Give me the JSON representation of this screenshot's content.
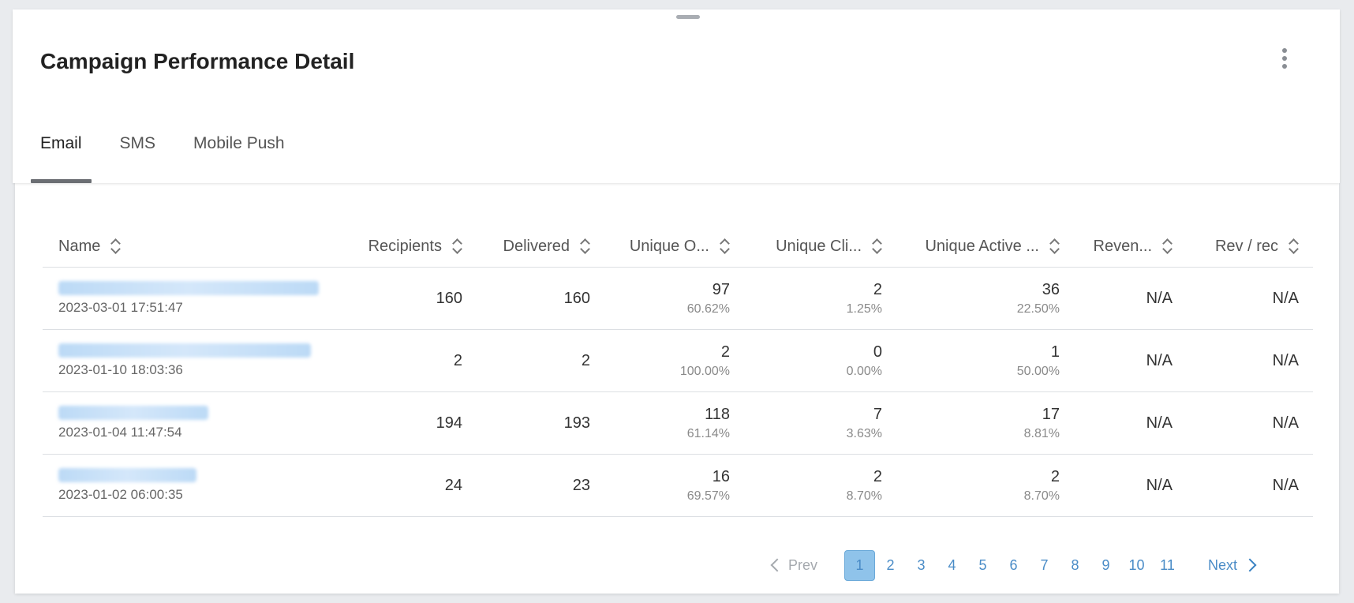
{
  "header": {
    "title": "Campaign Performance Detail",
    "more_icon": "more-vertical-icon"
  },
  "tabs": [
    {
      "label": "Email",
      "active": true
    },
    {
      "label": "SMS",
      "active": false
    },
    {
      "label": "Mobile Push",
      "active": false
    }
  ],
  "table": {
    "columns": [
      "Name",
      "Recipients",
      "Delivered",
      "Unique O...",
      "Unique Cli...",
      "Unique Active ...",
      "Reven...",
      "Rev / rec"
    ],
    "rows": [
      {
        "date": "2023-03-01 17:51:47",
        "recipients": "160",
        "delivered": "160",
        "opens": "97",
        "opens_pct": "60.62%",
        "clicks": "2",
        "clicks_pct": "1.25%",
        "active": "36",
        "active_pct": "22.50%",
        "revenue": "N/A",
        "rev_rec": "N/A"
      },
      {
        "date": "2023-01-10 18:03:36",
        "recipients": "2",
        "delivered": "2",
        "opens": "2",
        "opens_pct": "100.00%",
        "clicks": "0",
        "clicks_pct": "0.00%",
        "active": "1",
        "active_pct": "50.00%",
        "revenue": "N/A",
        "rev_rec": "N/A"
      },
      {
        "date": "2023-01-04 11:47:54",
        "recipients": "194",
        "delivered": "193",
        "opens": "118",
        "opens_pct": "61.14%",
        "clicks": "7",
        "clicks_pct": "3.63%",
        "active": "17",
        "active_pct": "8.81%",
        "revenue": "N/A",
        "rev_rec": "N/A"
      },
      {
        "date": "2023-01-02 06:00:35",
        "recipients": "24",
        "delivered": "23",
        "opens": "16",
        "opens_pct": "69.57%",
        "clicks": "2",
        "clicks_pct": "8.70%",
        "active": "2",
        "active_pct": "8.70%",
        "revenue": "N/A",
        "rev_rec": "N/A"
      }
    ]
  },
  "pagination": {
    "prev": "Prev",
    "next": "Next",
    "pages": [
      "1",
      "2",
      "3",
      "4",
      "5",
      "6",
      "7",
      "8",
      "9",
      "10",
      "11"
    ],
    "current": "1"
  },
  "colors": {
    "accent": "#4a8cc7",
    "active_page_bg": "#8fc3ea",
    "tab_indicator": "#6b6e73"
  }
}
